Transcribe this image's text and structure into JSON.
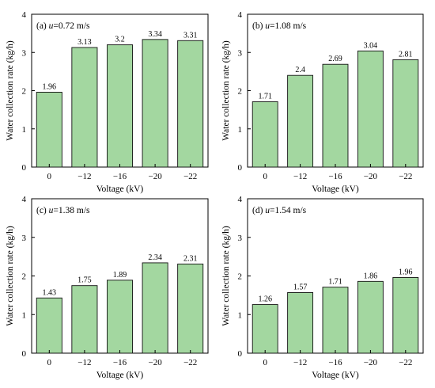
{
  "chart_data": [
    {
      "type": "bar",
      "panel_letter": "(a)",
      "panel_var": "u",
      "panel_value": "=0.72 m/s",
      "categories": [
        "0",
        "−12",
        "−16",
        "−20",
        "−22"
      ],
      "values": [
        1.96,
        3.13,
        3.2,
        3.34,
        3.31
      ],
      "value_labels": [
        "1.96",
        "3.13",
        "3.2",
        "3.34",
        "3.31"
      ],
      "xlabel": "Voltage (kV)",
      "ylabel": "Water collection rate (kg/h)",
      "ylim": [
        0,
        4
      ],
      "yticks": [
        "0",
        "1",
        "2",
        "3",
        "4"
      ],
      "bar_color": "#a3d7a0"
    },
    {
      "type": "bar",
      "panel_letter": "(b)",
      "panel_var": "u",
      "panel_value": "=1.08 m/s",
      "categories": [
        "0",
        "−12",
        "−16",
        "−20",
        "−22"
      ],
      "values": [
        1.71,
        2.4,
        2.69,
        3.04,
        2.81
      ],
      "value_labels": [
        "1.71",
        "2.4",
        "2.69",
        "3.04",
        "2.81"
      ],
      "xlabel": "Voltage (kV)",
      "ylabel": "Water collection rate (kg/h)",
      "ylim": [
        0,
        4
      ],
      "yticks": [
        "0",
        "1",
        "2",
        "3",
        "4"
      ],
      "bar_color": "#a3d7a0"
    },
    {
      "type": "bar",
      "panel_letter": "(c)",
      "panel_var": "u",
      "panel_value": "=1.38 m/s",
      "categories": [
        "0",
        "−12",
        "−16",
        "−20",
        "−22"
      ],
      "values": [
        1.43,
        1.75,
        1.89,
        2.34,
        2.31
      ],
      "value_labels": [
        "1.43",
        "1.75",
        "1.89",
        "2.34",
        "2.31"
      ],
      "xlabel": "Voltage (kV)",
      "ylabel": "Water collection rate (kg/h)",
      "ylim": [
        0,
        4
      ],
      "yticks": [
        "0",
        "1",
        "2",
        "3",
        "4"
      ],
      "bar_color": "#a3d7a0"
    },
    {
      "type": "bar",
      "panel_letter": "(d)",
      "panel_var": "u",
      "panel_value": "=1.54 m/s",
      "categories": [
        "0",
        "−12",
        "−16",
        "−20",
        "−22"
      ],
      "values": [
        1.26,
        1.57,
        1.71,
        1.86,
        1.96
      ],
      "value_labels": [
        "1.26",
        "1.57",
        "1.71",
        "1.86",
        "1.96"
      ],
      "xlabel": "Voltage (kV)",
      "ylabel": "Water collection rate (kg/h)",
      "ylim": [
        0,
        4
      ],
      "yticks": [
        "0",
        "1",
        "2",
        "3",
        "4"
      ],
      "bar_color": "#a3d7a0"
    }
  ]
}
